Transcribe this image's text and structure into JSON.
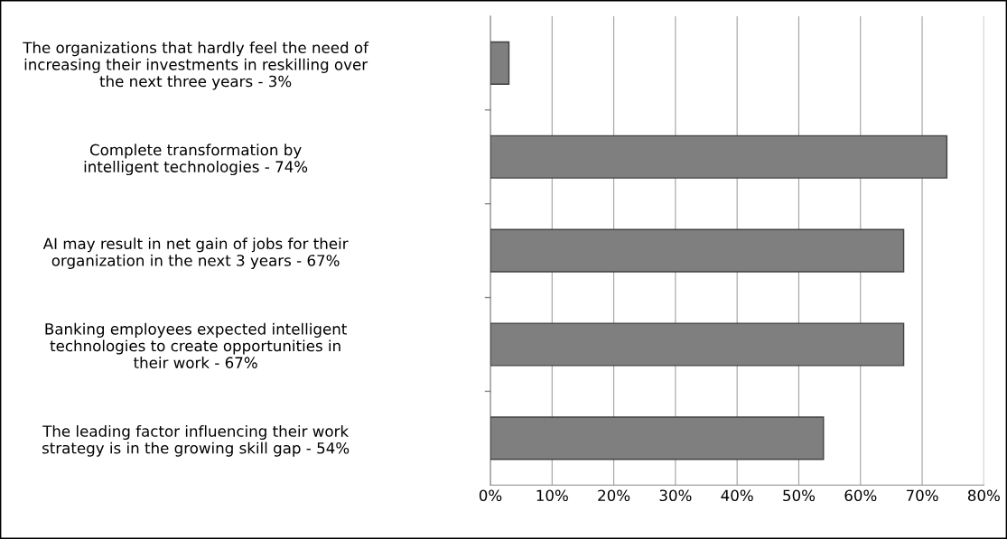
{
  "chart_data": {
    "type": "bar",
    "orientation": "horizontal",
    "categories": [
      "The organizations that hardly feel the need of\nincreasing their investments in reskilling over\nthe next three years - 3%",
      "Complete transformation by\nintelligent technologies - 74%",
      "AI may result in net gain of jobs for their\norganization in the next 3 years - 67%",
      "Banking employees expected intelligent\ntechnologies to create opportunities in\ntheir work - 67%",
      "The leading factor influencing their work\nstrategy is in the growing skill gap - 54%"
    ],
    "values": [
      3,
      74,
      67,
      67,
      54
    ],
    "color": "#7f7f7f",
    "xlim": [
      0,
      80
    ],
    "xticks": [
      {
        "value": 0,
        "label": "0%"
      },
      {
        "value": 10,
        "label": "10%"
      },
      {
        "value": 20,
        "label": "20%"
      },
      {
        "value": 30,
        "label": "30%"
      },
      {
        "value": 40,
        "label": "40%"
      },
      {
        "value": 50,
        "label": "50%"
      },
      {
        "value": 60,
        "label": "60%"
      },
      {
        "value": 70,
        "label": "70%"
      },
      {
        "value": 80,
        "label": "80%"
      }
    ],
    "grid": "x"
  }
}
